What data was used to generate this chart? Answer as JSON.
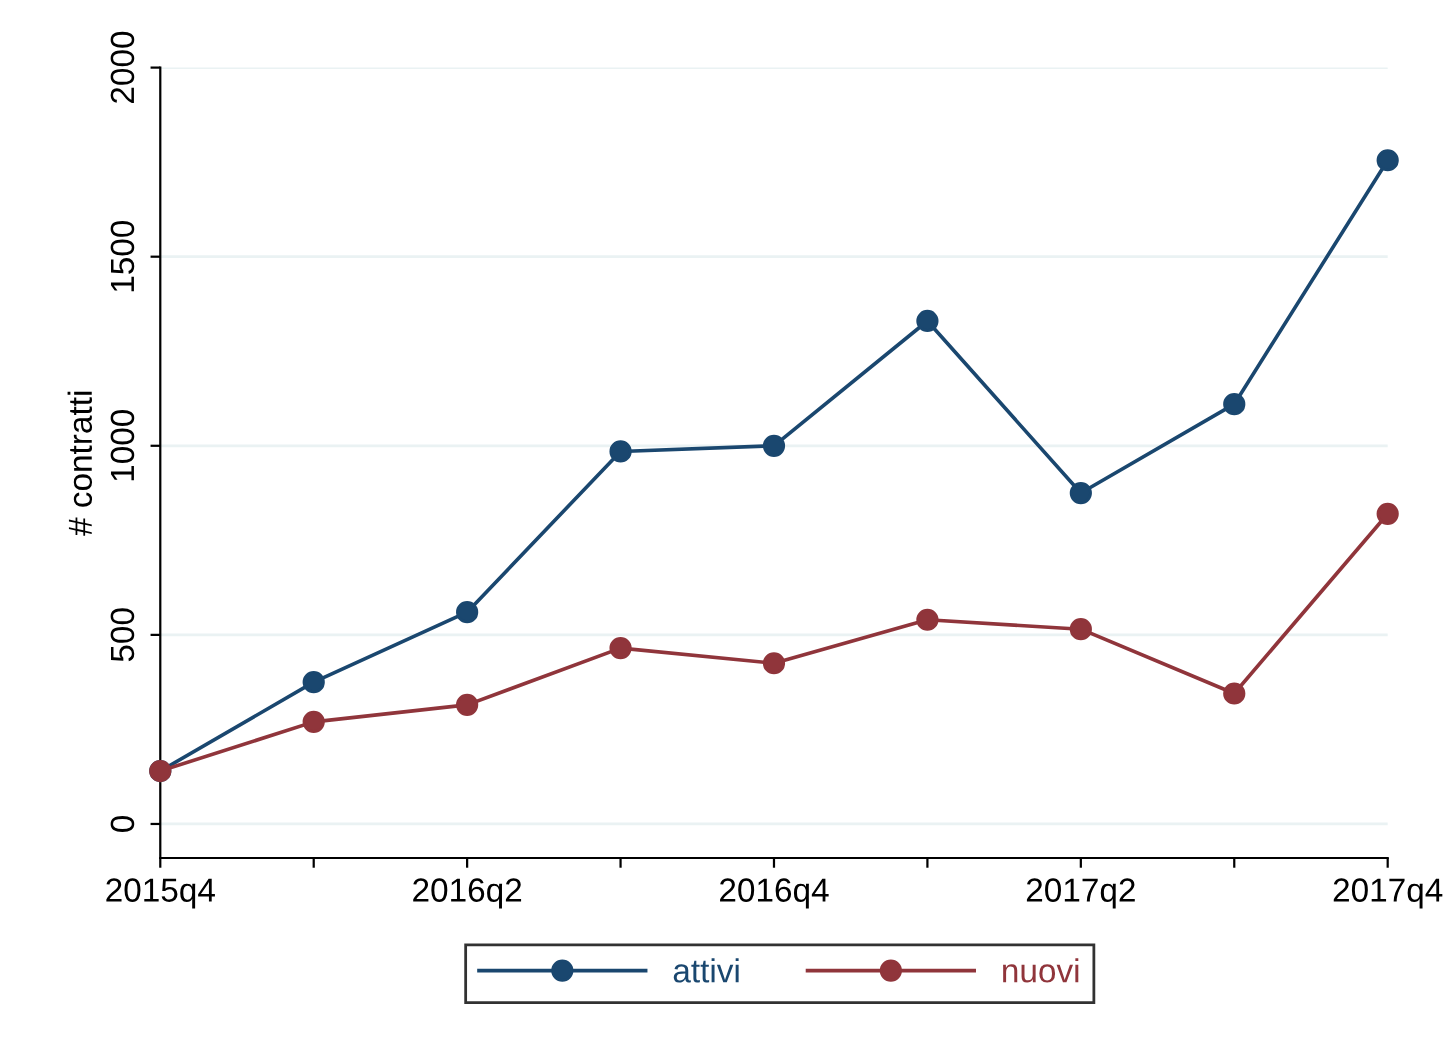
{
  "chart_data": {
    "type": "line",
    "ylabel": "# contratti",
    "categories": [
      "2015q4",
      null,
      "2016q2",
      null,
      "2016q4",
      null,
      "2017q2",
      null,
      "2017q4"
    ],
    "series": [
      {
        "name": "attivi",
        "color": "#1a476f",
        "values": [
          140,
          375,
          560,
          985,
          1000,
          1330,
          875,
          1110,
          1755
        ]
      },
      {
        "name": "nuovi",
        "color": "#90353b",
        "values": [
          140,
          270,
          315,
          465,
          425,
          540,
          515,
          345,
          820
        ]
      }
    ],
    "ylim": [
      -90,
      2000
    ],
    "yticks": [
      0,
      500,
      1000,
      1500,
      2000
    ],
    "grid": "y",
    "legend": "bottom",
    "marker": "circle",
    "line_style": "solid"
  }
}
